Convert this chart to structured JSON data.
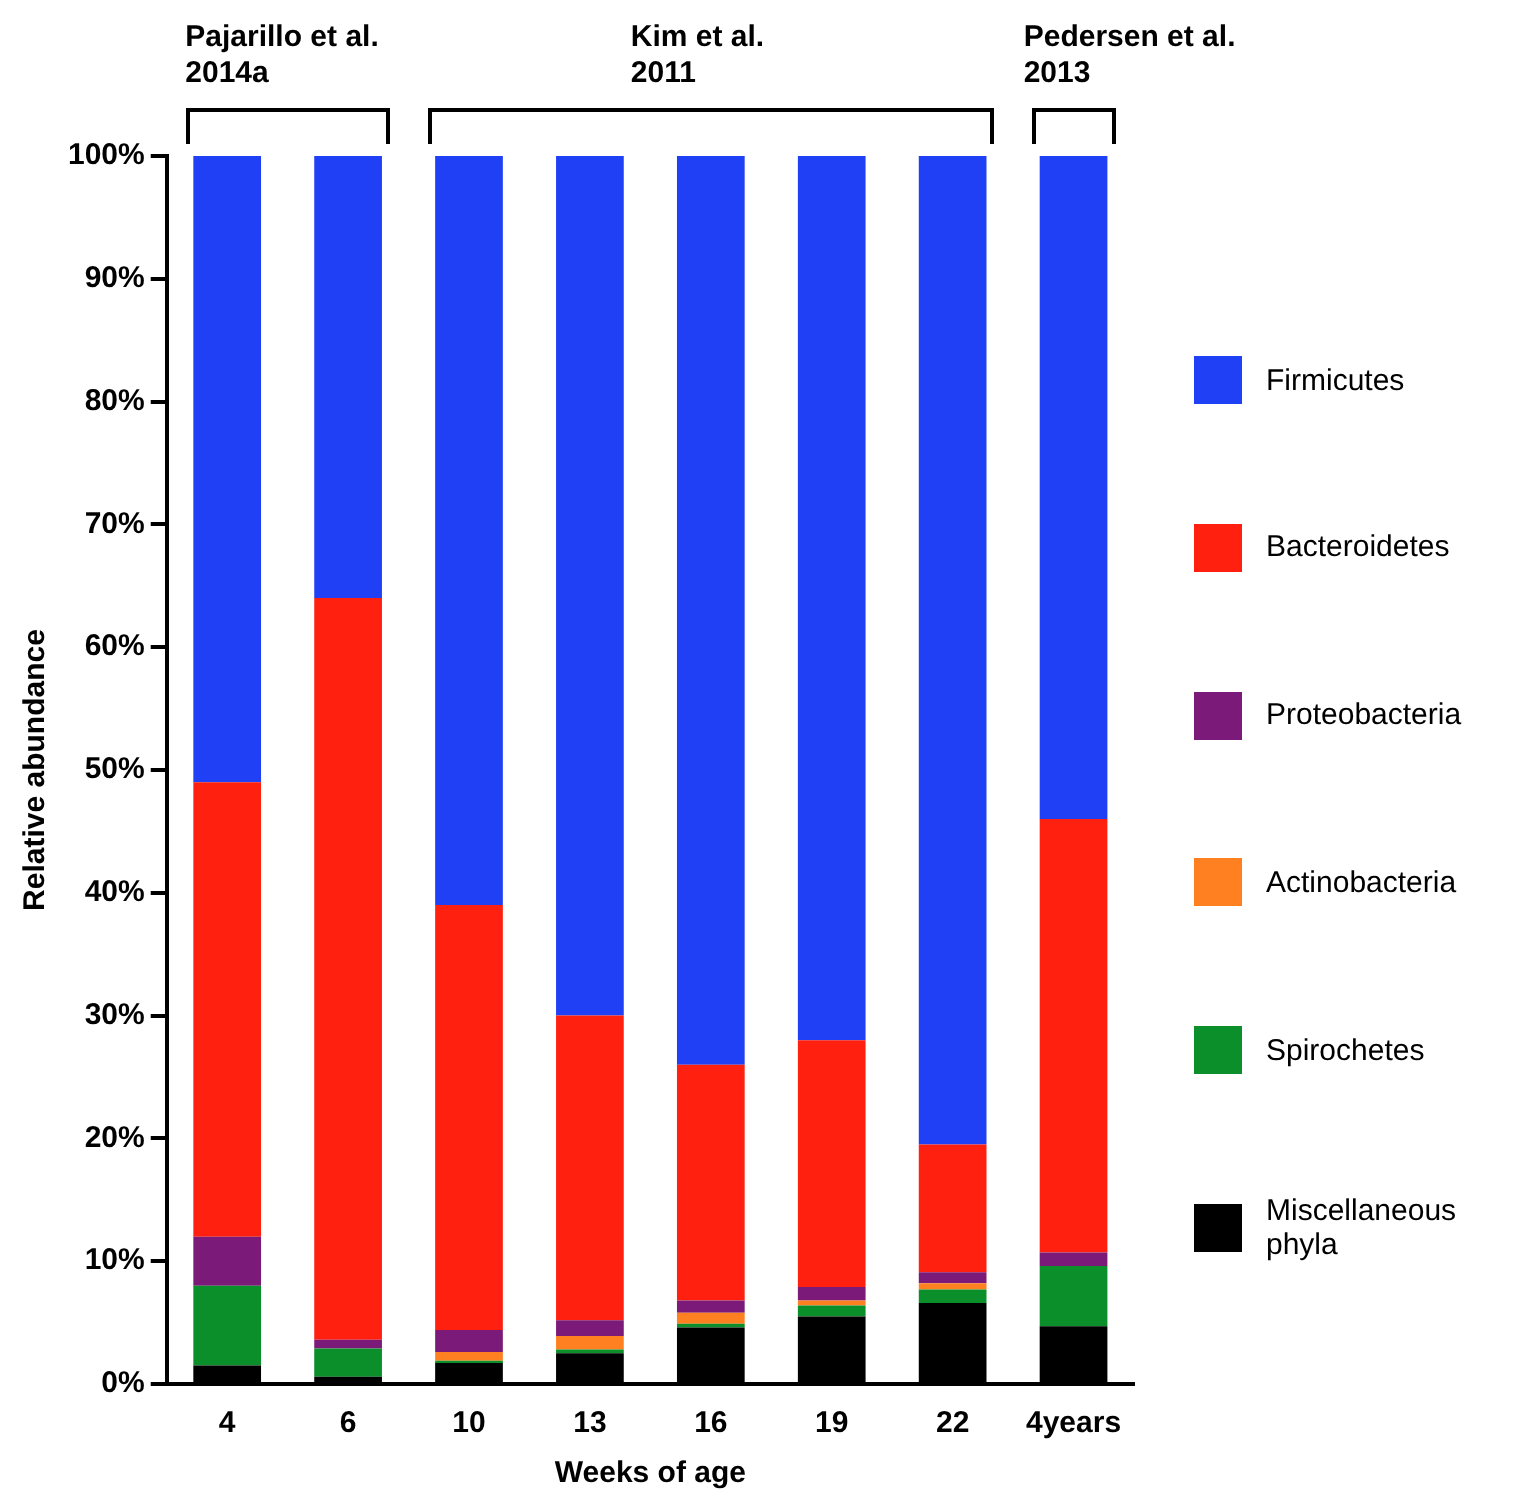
{
  "chart_data": {
    "type": "bar",
    "stacked": true,
    "xlabel": "Weeks of age",
    "ylabel": "Relative abundance",
    "categories": [
      "4",
      "6",
      "10",
      "13",
      "16",
      "19",
      "22",
      "4years"
    ],
    "ylim": [
      0,
      100
    ],
    "yticks": [
      {
        "value": 0,
        "label": "0%"
      },
      {
        "value": 10,
        "label": "10%"
      },
      {
        "value": 20,
        "label": "20%"
      },
      {
        "value": 30,
        "label": "30%"
      },
      {
        "value": 40,
        "label": "40%"
      },
      {
        "value": 50,
        "label": "50%"
      },
      {
        "value": 60,
        "label": "60%"
      },
      {
        "value": 70,
        "label": "70%"
      },
      {
        "value": 80,
        "label": "80%"
      },
      {
        "value": 90,
        "label": "90%"
      },
      {
        "value": 100,
        "label": "100%"
      }
    ],
    "grid": false,
    "legend": "right",
    "annotations": [
      "Pajarillo et al.\n2014a",
      "Kim et al.\n2011",
      "Pedersen et al.\n2013"
    ],
    "series": [
      {
        "name": "Miscellaneous phyla",
        "color": "#000000",
        "values": [
          1.5,
          0.6,
          1.7,
          2.5,
          4.6,
          5.5,
          6.6,
          4.7
        ]
      },
      {
        "name": "Spirochetes",
        "color": "#0a8f2a",
        "values": [
          6.5,
          2.3,
          0.2,
          0.3,
          0.3,
          0.9,
          1.1,
          4.9
        ]
      },
      {
        "name": "Actinobacteria",
        "color": "#ff8020",
        "values": [
          0,
          0,
          0.7,
          1.1,
          0.9,
          0.4,
          0.5,
          0
        ]
      },
      {
        "name": "Proteobacteria",
        "color": "#7b1a78",
        "values": [
          4,
          0.7,
          1.8,
          1.3,
          1.0,
          1.1,
          0.9,
          1.1
        ]
      },
      {
        "name": "Bacteroidetes",
        "color": "#ff2010",
        "values": [
          37,
          60.4,
          34.6,
          24.8,
          19.2,
          20.1,
          10.4,
          35.3
        ]
      },
      {
        "name": "Firmicutes",
        "color": "#1f40f5",
        "values": [
          51,
          36,
          61,
          70,
          74,
          72,
          80.5,
          54
        ]
      }
    ]
  }
}
